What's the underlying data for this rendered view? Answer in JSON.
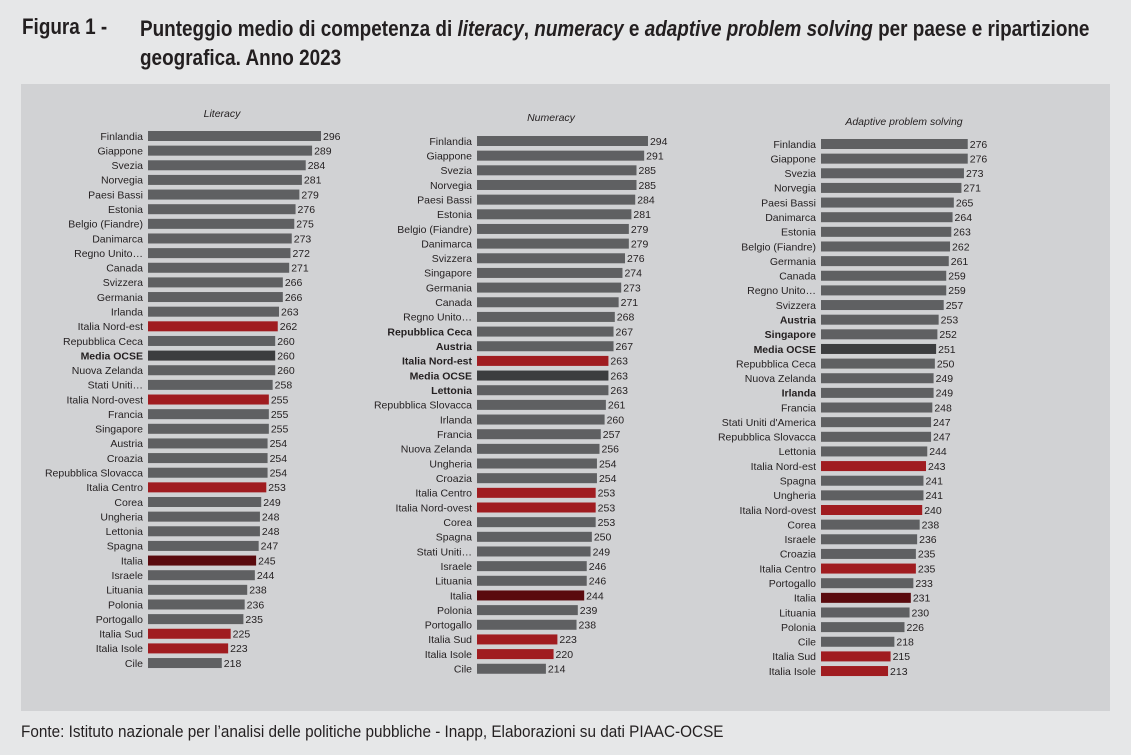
{
  "header": {
    "figure_label": "Figura 1 -",
    "title_parts": [
      {
        "text": "Punteggio medio di competenza di ",
        "italic": false
      },
      {
        "text": "literacy",
        "italic": true
      },
      {
        "text": ", ",
        "italic": false
      },
      {
        "text": "numeracy",
        "italic": true
      },
      {
        "text": " e ",
        "italic": false
      },
      {
        "text": "adaptive problem solving",
        "italic": true
      },
      {
        "text": " per paese e ripartizione geografica. Anno 2023",
        "italic": false
      }
    ]
  },
  "source": "Fonte: Istituto nazionale per l’analisi delle politiche pubbliche - Inapp, Elaborazioni su dati PIAAC-OCSE",
  "colors": {
    "default_bar": "#5f6062",
    "italy_region_bar": "#a01c20",
    "italy_bar": "#5a0a0e",
    "oecd_bar": "#3c3d3f",
    "panel_bg": "#d1d2d4",
    "page_bg": "#e6e7e8",
    "text": "#231f20"
  },
  "chart_data": [
    {
      "type": "bar",
      "orientation": "horizontal",
      "title": "Literacy",
      "categories": [
        "Finlandia",
        "Giappone",
        "Svezia",
        "Norvegia",
        "Paesi Bassi",
        "Estonia",
        "Belgio (Fiandre)",
        "Danimarca",
        "Regno Unito…",
        "Canada",
        "Svizzera",
        "Germania",
        "Irlanda",
        "Italia Nord-est",
        "Repubblica Ceca",
        "Media OCSE",
        "Nuova Zelanda",
        "Stati Uniti…",
        "Italia Nord-ovest",
        "Francia",
        "Singapore",
        "Austria",
        "Croazia",
        "Repubblica Slovacca",
        "Italia Centro",
        "Corea",
        "Ungheria",
        "Lettonia",
        "Spagna",
        "Italia",
        "Israele",
        "Lituania",
        "Polonia",
        "Portogallo",
        "Italia Sud",
        "Italia Isole",
        "Cile"
      ],
      "values": [
        296,
        289,
        284,
        281,
        279,
        276,
        275,
        273,
        272,
        271,
        266,
        266,
        263,
        262,
        260,
        260,
        260,
        258,
        255,
        255,
        255,
        254,
        254,
        254,
        253,
        249,
        248,
        248,
        247,
        245,
        244,
        238,
        236,
        235,
        225,
        223,
        218
      ],
      "highlight": {
        "Italia Nord-est": "region",
        "Italia Nord-ovest": "region",
        "Italia Centro": "region",
        "Italia Sud": "region",
        "Italia Isole": "region",
        "Italia": "italy",
        "Media OCSE": "oecd"
      },
      "bold_labels": [
        "Media OCSE"
      ]
    },
    {
      "type": "bar",
      "orientation": "horizontal",
      "title": "Numeracy",
      "categories": [
        "Finlandia",
        "Giappone",
        "Svezia",
        "Norvegia",
        "Paesi Bassi",
        "Estonia",
        "Belgio (Fiandre)",
        "Danimarca",
        "Svizzera",
        "Singapore",
        "Germania",
        "Canada",
        "Regno Unito…",
        "Repubblica Ceca",
        "Austria",
        "Italia Nord-est",
        "Media OCSE",
        "Lettonia",
        "Repubblica Slovacca",
        "Irlanda",
        "Francia",
        "Nuova Zelanda",
        "Ungheria",
        "Croazia",
        "Italia Centro",
        "Italia Nord-ovest",
        "Corea",
        "Spagna",
        "Stati Uniti…",
        "Israele",
        "Lituania",
        "Italia",
        "Polonia",
        "Portogallo",
        "Italia Sud",
        "Italia Isole",
        "Cile"
      ],
      "values": [
        294,
        291,
        285,
        285,
        284,
        281,
        279,
        279,
        276,
        274,
        273,
        271,
        268,
        267,
        267,
        263,
        263,
        263,
        261,
        260,
        257,
        256,
        254,
        254,
        253,
        253,
        253,
        250,
        249,
        246,
        246,
        244,
        239,
        238,
        223,
        220,
        214
      ],
      "highlight": {
        "Italia Nord-est": "region",
        "Italia Centro": "region",
        "Italia Nord-ovest": "region",
        "Italia Sud": "region",
        "Italia Isole": "region",
        "Italia": "italy",
        "Media OCSE": "oecd"
      },
      "bold_labels": [
        "Media OCSE",
        "Repubblica Ceca",
        "Austria",
        "Italia Nord-est",
        "Lettonia"
      ]
    },
    {
      "type": "bar",
      "orientation": "horizontal",
      "title": "Adaptive problem solving",
      "categories": [
        "Finlandia",
        "Giappone",
        "Svezia",
        "Norvegia",
        "Paesi Bassi",
        "Danimarca",
        "Estonia",
        "Belgio (Fiandre)",
        "Germania",
        "Canada",
        "Regno Unito…",
        "Svizzera",
        "Austria",
        "Singapore",
        "Media OCSE",
        "Repubblica Ceca",
        "Nuova Zelanda",
        "Irlanda",
        "Francia",
        "Stati Uniti d'America",
        "Repubblica Slovacca",
        "Lettonia",
        "Italia Nord-est",
        "Spagna",
        "Ungheria",
        "Italia Nord-ovest",
        "Corea",
        "Israele",
        "Croazia",
        "Italia Centro",
        "Portogallo",
        "Italia",
        "Lituania",
        "Polonia",
        "Cile",
        "Italia Sud",
        "Italia Isole"
      ],
      "values": [
        276,
        276,
        273,
        271,
        265,
        264,
        263,
        262,
        261,
        259,
        259,
        257,
        253,
        252,
        251,
        250,
        249,
        249,
        248,
        247,
        247,
        244,
        243,
        241,
        241,
        240,
        238,
        236,
        235,
        235,
        233,
        231,
        230,
        226,
        218,
        215,
        213
      ],
      "highlight": {
        "Italia Nord-est": "region",
        "Italia Nord-ovest": "region",
        "Italia Centro": "region",
        "Italia Sud": "region",
        "Italia Isole": "region",
        "Italia": "italy",
        "Media OCSE": "oecd"
      },
      "bold_labels": [
        "Media OCSE",
        "Austria",
        "Singapore",
        "Irlanda"
      ]
    }
  ]
}
